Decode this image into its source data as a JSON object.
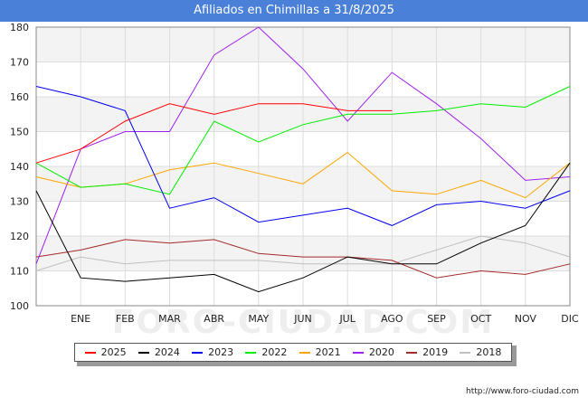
{
  "title": "Afiliados en Chimillas a 31/8/2025",
  "source": "http://www.foro-ciudad.com",
  "watermark": "FORO-CIUDAD.COM",
  "chart_data": {
    "type": "line",
    "categories": [
      "",
      "ENE",
      "FEB",
      "MAR",
      "ABR",
      "MAY",
      "JUN",
      "JUL",
      "AGO",
      "SEP",
      "OCT",
      "NOV",
      "DIC"
    ],
    "ylim": [
      100,
      180
    ],
    "yticks": [
      100,
      110,
      120,
      130,
      140,
      150,
      160,
      170,
      180
    ],
    "grid": true,
    "legend_position": "bottom",
    "series": [
      {
        "name": "2025",
        "color": "#ff0000",
        "values": [
          141,
          145,
          153,
          158,
          155,
          158,
          158,
          156,
          156,
          null,
          null,
          null,
          null
        ]
      },
      {
        "name": "2024",
        "color": "#000000",
        "values": [
          133,
          108,
          107,
          108,
          109,
          104,
          108,
          114,
          112,
          112,
          118,
          123,
          141
        ]
      },
      {
        "name": "2023",
        "color": "#0000ee",
        "values": [
          163,
          160,
          156,
          128,
          131,
          124,
          126,
          128,
          123,
          129,
          130,
          128,
          133
        ]
      },
      {
        "name": "2022",
        "color": "#00ee00",
        "values": [
          141,
          134,
          135,
          132,
          153,
          147,
          152,
          155,
          155,
          156,
          158,
          157,
          163
        ]
      },
      {
        "name": "2021",
        "color": "#ffa500",
        "values": [
          137,
          134,
          135,
          139,
          141,
          138,
          135,
          144,
          133,
          132,
          136,
          131,
          141
        ]
      },
      {
        "name": "2020",
        "color": "#a020f0",
        "values": [
          112,
          145,
          150,
          150,
          172,
          180,
          168,
          153,
          167,
          158,
          148,
          136,
          137
        ]
      },
      {
        "name": "2019",
        "color": "#a52a2a",
        "values": [
          114,
          116,
          119,
          118,
          119,
          115,
          114,
          114,
          113,
          108,
          110,
          109,
          112
        ]
      },
      {
        "name": "2018",
        "color": "#c0c0c0",
        "values": [
          110,
          114,
          112,
          113,
          113,
          113,
          112,
          112,
          112,
          116,
          120,
          118,
          114
        ]
      }
    ]
  }
}
